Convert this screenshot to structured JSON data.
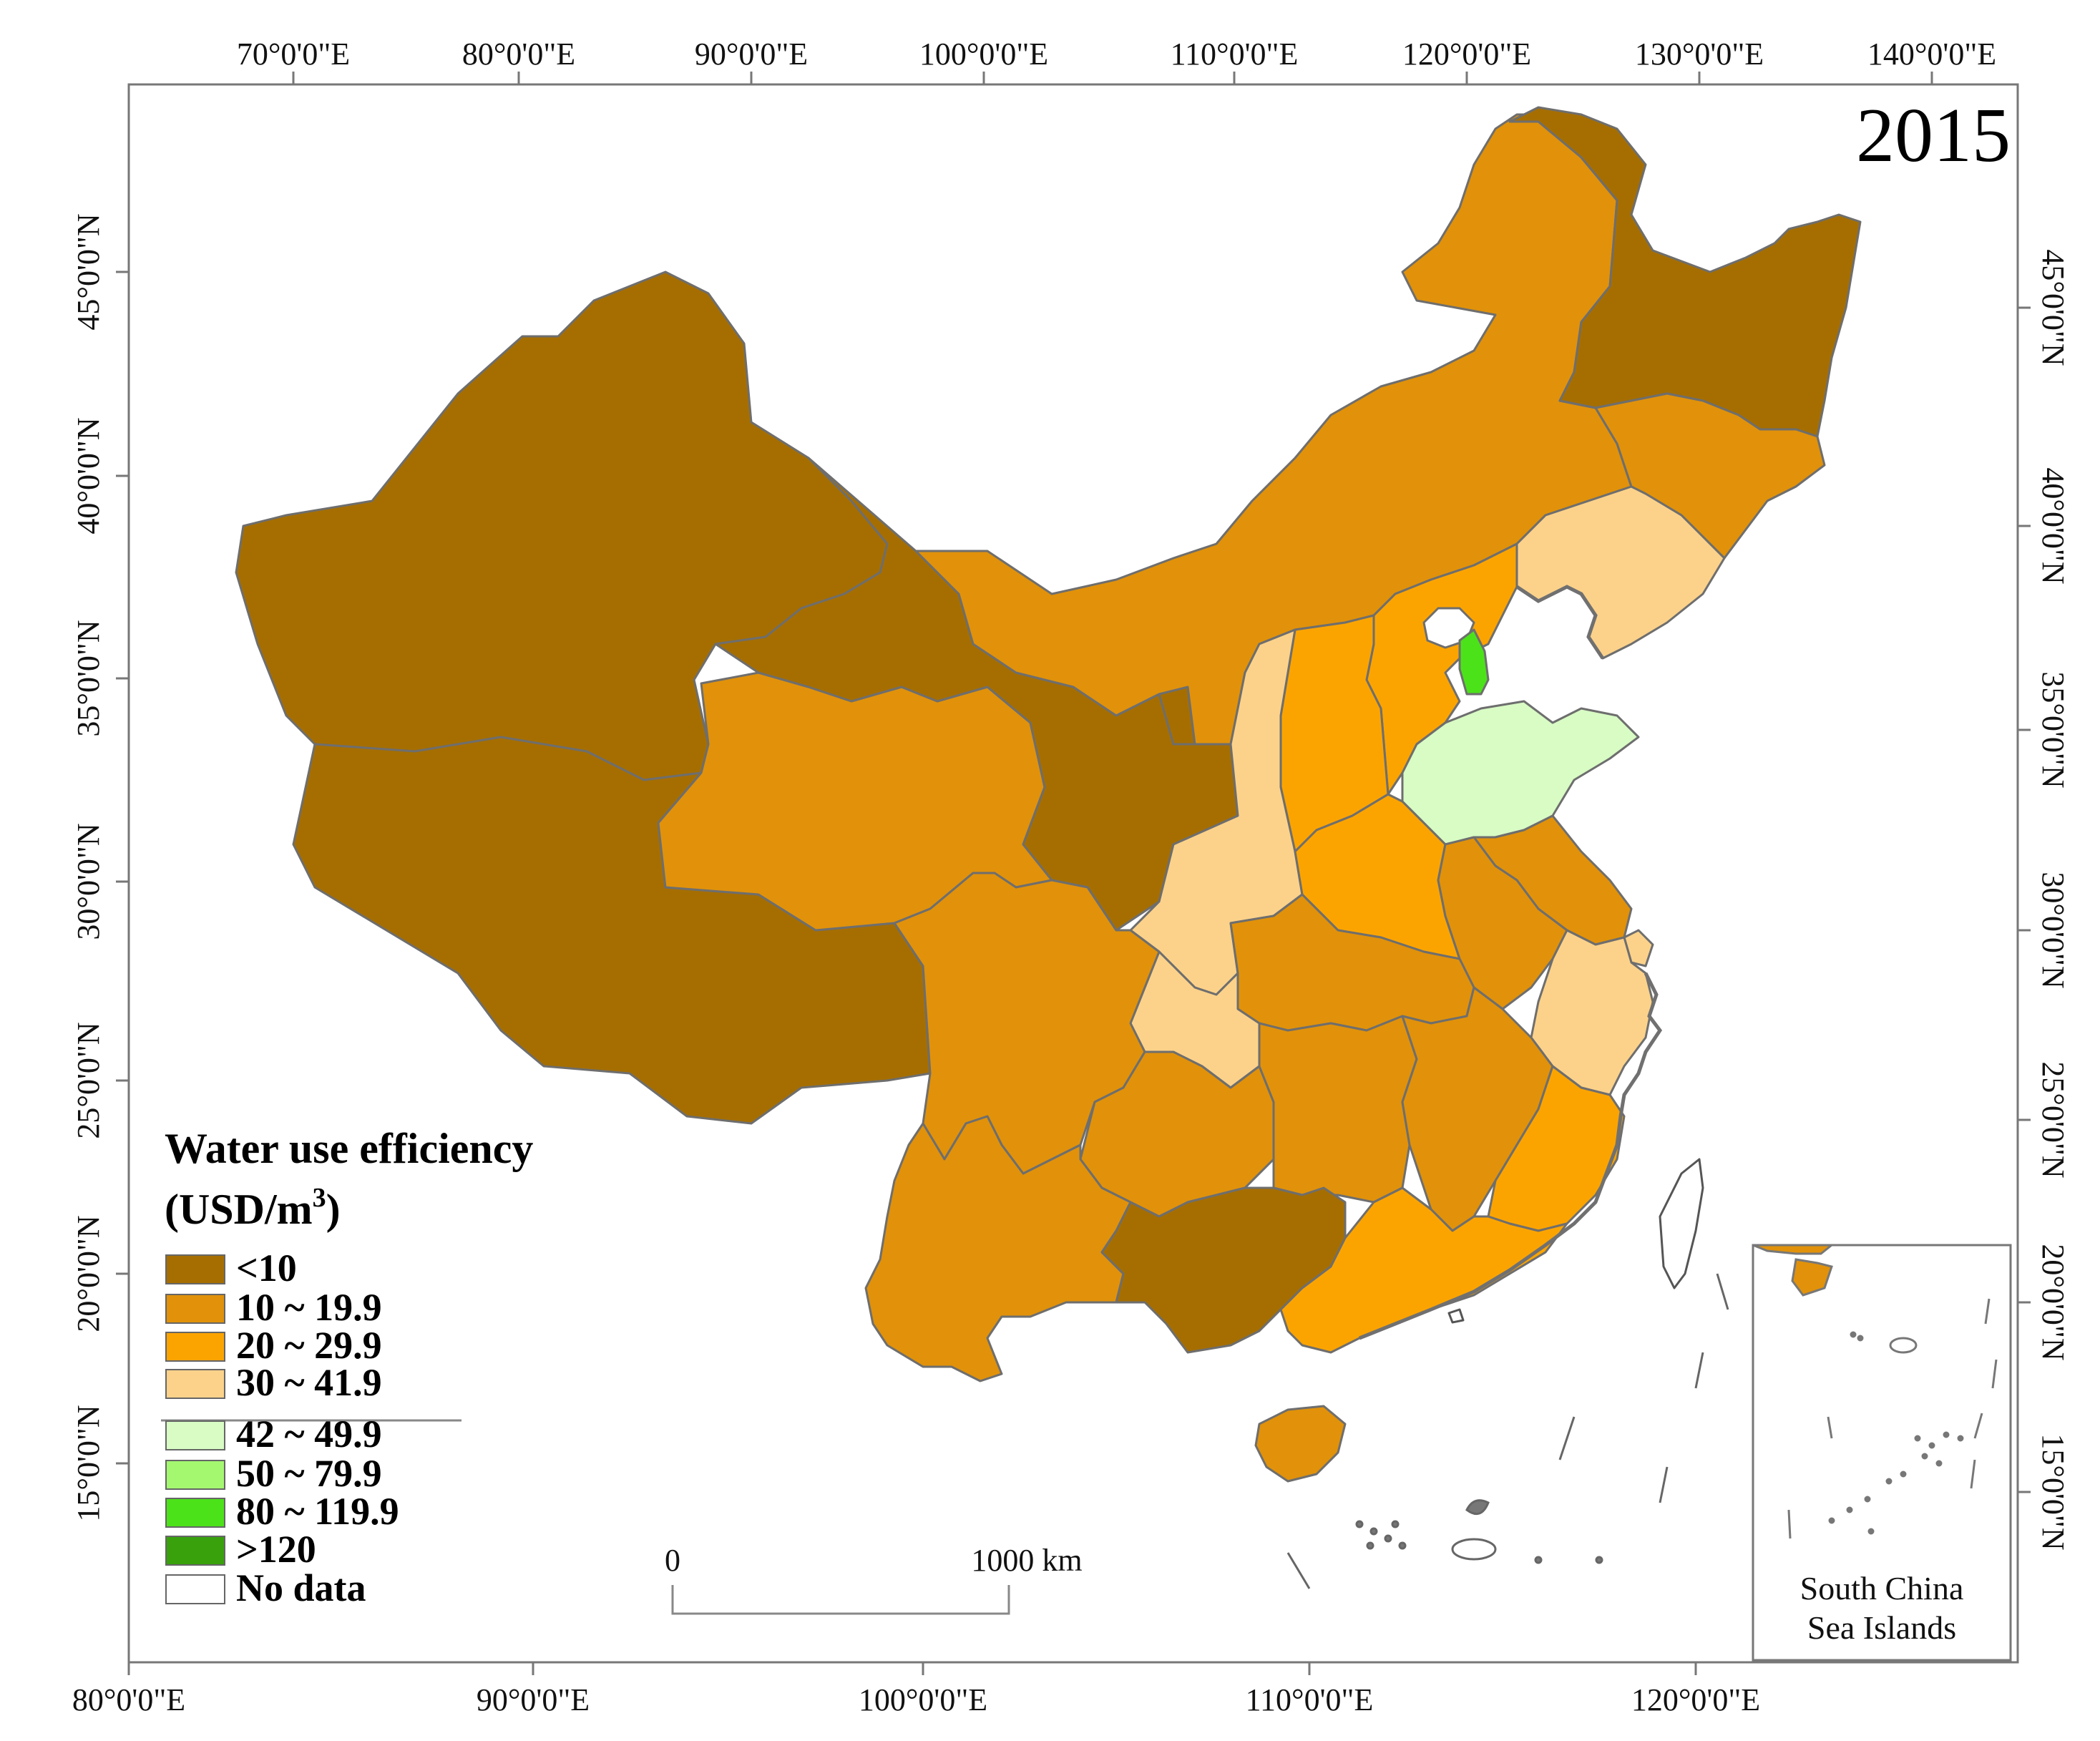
{
  "map": {
    "year": "2015",
    "legend": {
      "title_line1": "Water use efficiency",
      "title_line2_prefix": "(USD/m",
      "title_line2_sup": "3",
      "title_line2_suffix": ")",
      "classes": [
        {
          "label": "<10",
          "color": "#A66E00"
        },
        {
          "label": "10 ~ 19.9",
          "color": "#E1920A"
        },
        {
          "label": "20 ~ 29.9",
          "color": "#FBA400"
        },
        {
          "label": "30 ~ 41.9",
          "color": "#FCD28A"
        },
        {
          "label": "42 ~ 49.9",
          "color": "#D8FCC4"
        },
        {
          "label": "50 ~ 79.9",
          "color": "#A4F870"
        },
        {
          "label": "80 ~ 119.9",
          "color": "#4CE21A"
        },
        {
          "label": ">120",
          "color": "#38A10C"
        },
        {
          "label": "No data",
          "color": "#FFFFFF"
        }
      ]
    },
    "top_axis_labels": [
      "70°0'0\"E",
      "80°0'0\"E",
      "90°0'0\"E",
      "100°0'0\"E",
      "110°0'0\"E",
      "120°0'0\"E",
      "130°0'0\"E",
      "140°0'0\"E"
    ],
    "bottom_axis_labels": [
      "80°0'0\"E",
      "90°0'0\"E",
      "100°0'0\"E",
      "110°0'0\"E",
      "120°0'0\"E"
    ],
    "left_axis_labels": [
      "45°0'0\"N",
      "40°0'0\"N",
      "35°0'0\"N",
      "30°0'0\"N",
      "25°0'0\"N",
      "20°0'0\"N",
      "15°0'0\"N"
    ],
    "right_axis_labels": [
      "45°0'0\"N",
      "40°0'0\"N",
      "35°0'0\"N",
      "30°0'0\"N",
      "25°0'0\"N",
      "20°0'0\"N",
      "15°0'0\"N"
    ],
    "scale_bar": {
      "start_label": "0",
      "end_label": "1000 km"
    },
    "inset": {
      "label_line1": "South China",
      "label_line2": "Sea Islands"
    },
    "colors": {
      "class_lt10": "#A66E00",
      "class_10_19": "#E1920A",
      "class_20_29": "#FBA400",
      "class_30_41": "#FCD28A",
      "class_42_49": "#D8FCC4",
      "class_80_119": "#4CE21A",
      "border": "#6E6E6E",
      "coast": "#707070"
    }
  }
}
